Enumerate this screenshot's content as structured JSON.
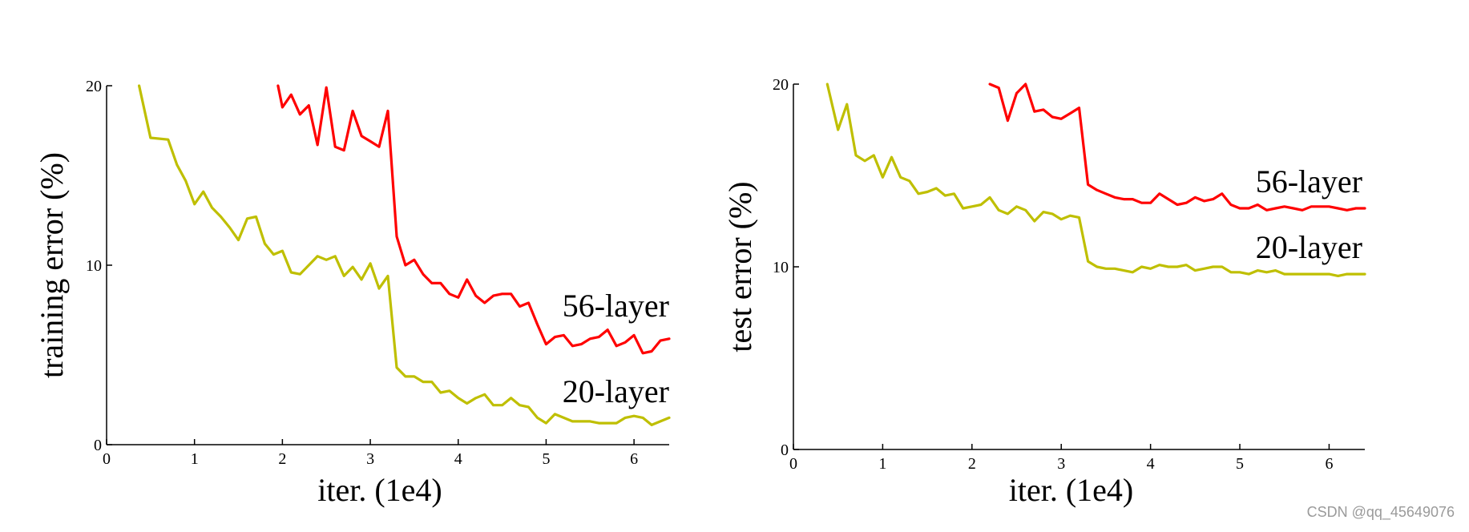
{
  "chart_data": [
    {
      "type": "line",
      "xlabel": "iter. (1e4)",
      "ylabel": "training error (%)",
      "xlim": [
        0,
        6.4
      ],
      "ylim": [
        0,
        20
      ],
      "xticks": [
        0,
        1,
        2,
        3,
        4,
        5,
        6
      ],
      "yticks": [
        0,
        10,
        20
      ],
      "series": [
        {
          "name": "56-layer",
          "color": "#ff0000",
          "x": [
            1.95,
            2.0,
            2.1,
            2.2,
            2.3,
            2.4,
            2.5,
            2.6,
            2.7,
            2.8,
            2.9,
            3.0,
            3.1,
            3.2,
            3.3,
            3.4,
            3.5,
            3.6,
            3.7,
            3.8,
            3.9,
            4.0,
            4.1,
            4.2,
            4.3,
            4.4,
            4.5,
            4.6,
            4.7,
            4.8,
            4.9,
            5.0,
            5.1,
            5.2,
            5.3,
            5.4,
            5.5,
            5.6,
            5.7,
            5.8,
            5.9,
            6.0,
            6.1,
            6.2,
            6.3,
            6.4
          ],
          "values": [
            20.0,
            18.8,
            19.5,
            18.4,
            18.9,
            16.7,
            19.9,
            16.6,
            16.4,
            18.6,
            17.2,
            16.9,
            16.6,
            18.6,
            11.6,
            10.0,
            10.3,
            9.5,
            9.0,
            9.0,
            8.4,
            8.2,
            9.2,
            8.3,
            7.9,
            8.3,
            8.4,
            8.4,
            7.7,
            7.9,
            6.7,
            5.6,
            6.0,
            6.1,
            5.5,
            5.6,
            5.9,
            6.0,
            6.4,
            5.5,
            5.7,
            6.1,
            5.1,
            5.2,
            5.8,
            5.9
          ]
        },
        {
          "name": "20-layer",
          "color": "#bfbf00",
          "x": [
            0.37,
            0.5,
            0.7,
            0.8,
            0.9,
            1.0,
            1.1,
            1.2,
            1.3,
            1.4,
            1.5,
            1.6,
            1.7,
            1.8,
            1.9,
            2.0,
            2.1,
            2.2,
            2.3,
            2.4,
            2.5,
            2.6,
            2.7,
            2.8,
            2.9,
            3.0,
            3.1,
            3.2,
            3.3,
            3.4,
            3.5,
            3.6,
            3.7,
            3.8,
            3.9,
            4.0,
            4.1,
            4.2,
            4.3,
            4.4,
            4.5,
            4.6,
            4.7,
            4.8,
            4.9,
            5.0,
            5.1,
            5.2,
            5.3,
            5.4,
            5.5,
            5.6,
            5.7,
            5.8,
            5.9,
            6.0,
            6.1,
            6.2,
            6.3,
            6.4
          ],
          "values": [
            20.0,
            17.1,
            17.0,
            15.6,
            14.7,
            13.4,
            14.1,
            13.2,
            12.7,
            12.1,
            11.4,
            12.6,
            12.7,
            11.2,
            10.6,
            10.8,
            9.6,
            9.5,
            10.0,
            10.5,
            10.3,
            10.5,
            9.4,
            9.9,
            9.2,
            10.1,
            8.7,
            9.4,
            4.3,
            3.8,
            3.8,
            3.5,
            3.5,
            2.9,
            3.0,
            2.6,
            2.3,
            2.6,
            2.8,
            2.2,
            2.2,
            2.6,
            2.2,
            2.1,
            1.5,
            1.2,
            1.7,
            1.5,
            1.3,
            1.3,
            1.3,
            1.2,
            1.2,
            1.2,
            1.5,
            1.6,
            1.5,
            1.1,
            1.3,
            1.5
          ]
        }
      ]
    },
    {
      "type": "line",
      "xlabel": "iter. (1e4)",
      "ylabel": "test error (%)",
      "xlim": [
        0,
        6.4
      ],
      "ylim": [
        0,
        20
      ],
      "xticks": [
        0,
        1,
        2,
        3,
        4,
        5,
        6
      ],
      "yticks": [
        0,
        10,
        20
      ],
      "series": [
        {
          "name": "56-layer",
          "color": "#ff0000",
          "x": [
            2.2,
            2.3,
            2.4,
            2.5,
            2.6,
            2.7,
            2.8,
            2.9,
            3.0,
            3.1,
            3.2,
            3.3,
            3.4,
            3.5,
            3.6,
            3.7,
            3.8,
            3.9,
            4.0,
            4.1,
            4.2,
            4.3,
            4.4,
            4.5,
            4.6,
            4.7,
            4.8,
            4.9,
            5.0,
            5.1,
            5.2,
            5.3,
            5.4,
            5.5,
            5.6,
            5.7,
            5.8,
            5.9,
            6.0,
            6.1,
            6.2,
            6.3,
            6.4
          ],
          "values": [
            20.0,
            19.8,
            18.0,
            19.5,
            20.0,
            18.5,
            18.6,
            18.2,
            18.1,
            18.4,
            18.7,
            14.5,
            14.2,
            14.0,
            13.8,
            13.7,
            13.7,
            13.5,
            13.5,
            14.0,
            13.7,
            13.4,
            13.5,
            13.8,
            13.6,
            13.7,
            14.0,
            13.4,
            13.2,
            13.2,
            13.4,
            13.1,
            13.2,
            13.3,
            13.2,
            13.1,
            13.3,
            13.3,
            13.3,
            13.2,
            13.1,
            13.2,
            13.2
          ]
        },
        {
          "name": "20-layer",
          "color": "#bfbf00",
          "x": [
            0.38,
            0.5,
            0.6,
            0.7,
            0.8,
            0.9,
            1.0,
            1.1,
            1.2,
            1.3,
            1.4,
            1.5,
            1.6,
            1.7,
            1.8,
            1.9,
            2.0,
            2.1,
            2.2,
            2.3,
            2.4,
            2.5,
            2.6,
            2.7,
            2.8,
            2.9,
            3.0,
            3.1,
            3.2,
            3.3,
            3.4,
            3.5,
            3.6,
            3.7,
            3.8,
            3.9,
            4.0,
            4.1,
            4.2,
            4.3,
            4.4,
            4.5,
            4.6,
            4.7,
            4.8,
            4.9,
            5.0,
            5.1,
            5.2,
            5.3,
            5.4,
            5.5,
            5.6,
            5.7,
            5.8,
            5.9,
            6.0,
            6.1,
            6.2,
            6.3,
            6.4
          ],
          "values": [
            20.0,
            17.5,
            18.9,
            16.1,
            15.8,
            16.1,
            14.9,
            16.0,
            14.9,
            14.7,
            14.0,
            14.1,
            14.3,
            13.9,
            14.0,
            13.2,
            13.3,
            13.4,
            13.8,
            13.1,
            12.9,
            13.3,
            13.1,
            12.5,
            13.0,
            12.9,
            12.6,
            12.8,
            12.7,
            10.3,
            10.0,
            9.9,
            9.9,
            9.8,
            9.7,
            10.0,
            9.9,
            10.1,
            10.0,
            10.0,
            10.1,
            9.8,
            9.9,
            10.0,
            10.0,
            9.7,
            9.7,
            9.6,
            9.8,
            9.7,
            9.8,
            9.6,
            9.6,
            9.6,
            9.6,
            9.6,
            9.6,
            9.5,
            9.6,
            9.6,
            9.6
          ]
        }
      ]
    }
  ],
  "watermark": "CSDN @qq_45649076"
}
